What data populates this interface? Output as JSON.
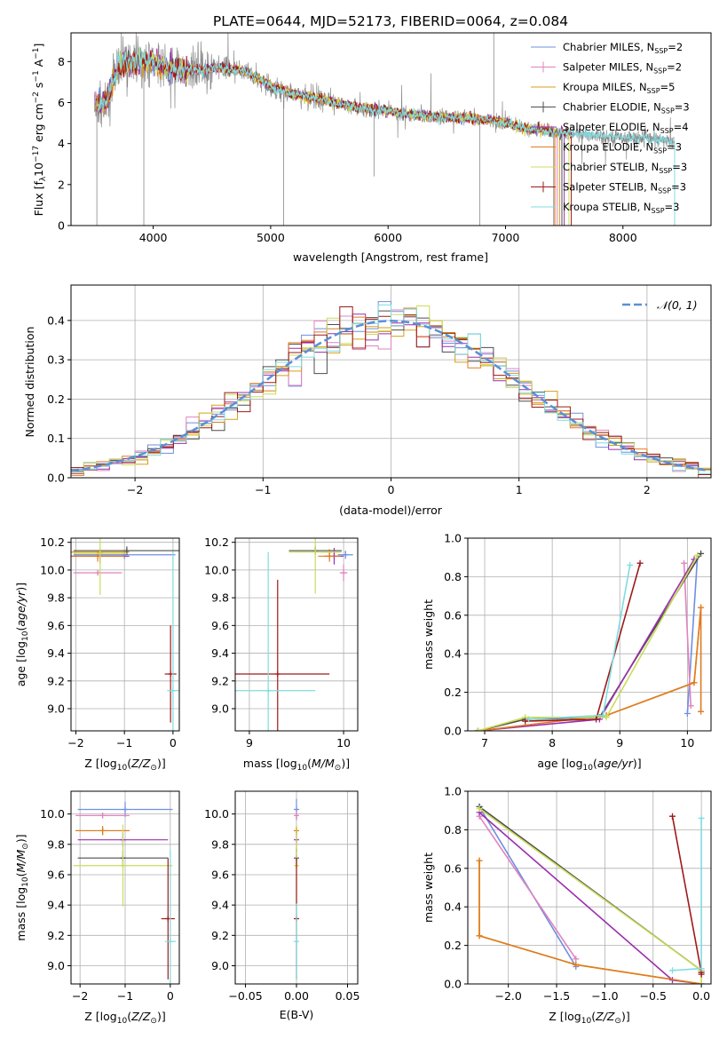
{
  "figure": {
    "suptitle": "PLATE=0644, MJD=52173, FIBERID=0064, z=0.084"
  },
  "colors": {
    "chabrier_miles": "#6f8fe0",
    "salpeter_miles": "#e083c0",
    "kroupa_miles": "#d4a017",
    "chabrier_elodie": "#4d4d4d",
    "salpeter_elodie": "#9b2fae",
    "kroupa_elodie": "#e07b20",
    "chabrier_stelib": "#c9dd5a",
    "salpeter_stelib": "#9e1a1a",
    "kroupa_stelib": "#7fdce0",
    "data": "#888888",
    "normal": "#5b8fd6"
  },
  "legend_entries": [
    {
      "base": "Chabrier MILES, N",
      "sub": "SSP",
      "tail": "=2"
    },
    {
      "base": "Salpeter MILES, N",
      "sub": "SSP",
      "tail": "=2"
    },
    {
      "base": "Kroupa MILES, N",
      "sub": "SSP",
      "tail": "=5"
    },
    {
      "base": "Chabrier ELODIE, N",
      "sub": "SSP",
      "tail": "=3"
    },
    {
      "base": "Salpeter ELODIE, N",
      "sub": "SSP",
      "tail": "=4"
    },
    {
      "base": "Kroupa ELODIE, N",
      "sub": "SSP",
      "tail": "=3"
    },
    {
      "base": "Chabrier STELIB, N",
      "sub": "SSP",
      "tail": "=3"
    },
    {
      "base": "Salpeter STELIB, N",
      "sub": "SSP",
      "tail": "=3"
    },
    {
      "base": "Kroupa STELIB, N",
      "sub": "SSP",
      "tail": "=3"
    }
  ],
  "chart_data": [
    {
      "id": "spectrum",
      "type": "line",
      "xlabel": "wavelength [Angstrom, rest frame]",
      "ylabel": "Flux [fλ10⁻¹⁷ erg cm⁻² s⁻¹ A⁻¹]",
      "xlim": [
        3300,
        8750
      ],
      "ylim": [
        0,
        9.4
      ],
      "xticks": [
        4000,
        5000,
        6000,
        7000,
        8000
      ],
      "yticks": [
        0,
        2,
        4,
        6,
        8
      ],
      "legend": "top-right",
      "continuum": {
        "x": [
          3500,
          3600,
          3700,
          3800,
          3900,
          4000,
          4100,
          4200,
          4400,
          4600,
          4800,
          5000,
          5200,
          5400,
          5600,
          5800,
          6000,
          6200,
          6400,
          6600,
          6800,
          7000,
          7200,
          7400,
          7600,
          7800,
          8000,
          8200,
          8400
        ],
        "y": [
          6.0,
          5.9,
          7.8,
          7.9,
          8.0,
          8.0,
          7.7,
          7.6,
          7.6,
          7.7,
          7.5,
          6.8,
          6.4,
          6.2,
          5.9,
          5.7,
          5.6,
          5.4,
          5.3,
          5.25,
          5.2,
          5.0,
          4.7,
          4.6,
          4.45,
          4.4,
          4.3,
          4.25,
          4.1
        ]
      }
    },
    {
      "id": "residuals",
      "type": "bar",
      "xlabel": "(data-model)/error",
      "ylabel": "Normed distribution",
      "xlim": [
        -2.5,
        2.5
      ],
      "ylim": [
        0,
        0.49
      ],
      "xticks": [
        -2,
        -1,
        0,
        1,
        2
      ],
      "yticks": [
        0.0,
        0.1,
        0.2,
        0.3,
        0.4
      ],
      "grid": true,
      "legend": "top-right",
      "legend_label": "𝒩(0, 1)",
      "bin_width": 0.1
    },
    {
      "id": "age_vs_Z",
      "type": "scatter",
      "xlabel": "Z [log10(Z/Z⊙)]",
      "ylabel": "age  [log10(age/yr)]",
      "xlim": [
        -2.1,
        0.13
      ],
      "ylim": [
        8.84,
        10.23
      ],
      "xticks": [
        -2,
        -1,
        0
      ],
      "yticks": [
        9.0,
        9.2,
        9.4,
        9.6,
        9.8,
        10.0,
        10.2
      ],
      "grid": true,
      "points": [
        {
          "c": "chabrier_miles",
          "x": -1.0,
          "y": 10.11,
          "xerr": 1.05,
          "yerr": 0.03
        },
        {
          "c": "salpeter_miles",
          "x": -1.55,
          "y": 9.98,
          "xerr": 0.5,
          "yerr": 0.02
        },
        {
          "c": "kroupa_miles",
          "x": -1.5,
          "y": 10.13,
          "xerr": 0.6,
          "yerr": 0.02
        },
        {
          "c": "chabrier_elodie",
          "x": -0.95,
          "y": 10.14,
          "xerr": 1.1,
          "yerr": 0.03
        },
        {
          "c": "salpeter_elodie",
          "x": -1.5,
          "y": 10.1,
          "xerr": 0.6,
          "yerr": 0.05
        },
        {
          "c": "kroupa_elodie",
          "x": -1.55,
          "y": 10.1,
          "xerr": 0.55,
          "yerr": 0.04
        },
        {
          "c": "chabrier_stelib",
          "x": -1.5,
          "y": 10.12,
          "xerr": 0.55,
          "yerr": 0.3
        },
        {
          "c": "salpeter_stelib",
          "x": -0.05,
          "y": 9.25,
          "xerr": 0.12,
          "yerr": 0.35
        },
        {
          "c": "kroupa_stelib",
          "x": 0.0,
          "y": 9.13,
          "xerr": 0.12,
          "yerr": 1.0
        }
      ]
    },
    {
      "id": "age_vs_mass",
      "type": "scatter",
      "xlabel": "mass [log10(M/M⊙)]",
      "ylabel": "",
      "xlim": [
        8.85,
        10.15
      ],
      "ylim": [
        8.84,
        10.23
      ],
      "xticks": [
        9,
        10
      ],
      "yticks": [
        9.0,
        9.2,
        9.4,
        9.6,
        9.8,
        10.0,
        10.2
      ],
      "grid": true,
      "points": [
        {
          "c": "chabrier_miles",
          "x": 10.02,
          "y": 10.11,
          "xerr": 0.08,
          "yerr": 0.03
        },
        {
          "c": "salpeter_miles",
          "x": 10.0,
          "y": 9.98,
          "xerr": 0.04,
          "yerr": 0.06
        },
        {
          "c": "kroupa_miles",
          "x": 9.85,
          "y": 10.13,
          "xerr": 0.1,
          "yerr": 0.02
        },
        {
          "c": "chabrier_elodie",
          "x": 9.7,
          "y": 10.14,
          "xerr": 0.28,
          "yerr": 0.03
        },
        {
          "c": "salpeter_elodie",
          "x": 9.9,
          "y": 10.1,
          "xerr": 0.1,
          "yerr": 0.06
        },
        {
          "c": "kroupa_elodie",
          "x": 9.85,
          "y": 10.1,
          "xerr": 0.12,
          "yerr": 0.04
        },
        {
          "c": "chabrier_stelib",
          "x": 9.7,
          "y": 10.13,
          "xerr": 0.28,
          "yerr": 0.3
        },
        {
          "c": "salpeter_stelib",
          "x": 9.3,
          "y": 9.25,
          "xerr": 0.55,
          "yerr": 0.68
        },
        {
          "c": "kroupa_stelib",
          "x": 9.2,
          "y": 9.13,
          "xerr": 0.5,
          "yerr": 1.0
        }
      ]
    },
    {
      "id": "weight_vs_age",
      "type": "line",
      "xlabel": "age  [log10(age/yr)]",
      "ylabel": "mass weight",
      "xlim": [
        6.75,
        10.35
      ],
      "ylim": [
        0,
        1.0
      ],
      "xticks": [
        7,
        8,
        9,
        10
      ],
      "yticks": [
        0.0,
        0.2,
        0.4,
        0.6,
        0.8,
        1.0
      ],
      "grid": true,
      "series": [
        {
          "c": "chabrier_miles",
          "x": [
            10.0,
            10.15
          ],
          "y": [
            0.09,
            0.91
          ]
        },
        {
          "c": "salpeter_miles",
          "x": [
            9.95,
            10.05
          ],
          "y": [
            0.87,
            0.13
          ]
        },
        {
          "c": "kroupa_miles",
          "x": [
            6.9,
            7.6,
            8.8,
            10.1,
            10.2
          ],
          "y": [
            0.0,
            0.06,
            0.08,
            0.25,
            0.64
          ]
        },
        {
          "c": "chabrier_elodie",
          "x": [
            6.9,
            7.6,
            8.7,
            10.2
          ],
          "y": [
            0.0,
            0.06,
            0.07,
            0.92
          ]
        },
        {
          "c": "salpeter_elodie",
          "x": [
            6.9,
            8.7,
            10.1
          ],
          "y": [
            0.0,
            0.06,
            0.89
          ]
        },
        {
          "c": "kroupa_elodie",
          "x": [
            6.9,
            8.8,
            10.1,
            10.2,
            10.2
          ],
          "y": [
            0.0,
            0.08,
            0.25,
            0.64,
            0.1
          ]
        },
        {
          "c": "chabrier_stelib",
          "x": [
            6.9,
            7.6,
            8.8,
            10.15
          ],
          "y": [
            0.0,
            0.07,
            0.07,
            0.91
          ]
        },
        {
          "c": "salpeter_stelib",
          "x": [
            7.6,
            8.65,
            9.3
          ],
          "y": [
            0.05,
            0.06,
            0.87
          ]
        },
        {
          "c": "kroupa_stelib",
          "x": [
            7.65,
            8.75,
            9.15
          ],
          "y": [
            0.06,
            0.08,
            0.86
          ]
        }
      ]
    },
    {
      "id": "mass_vs_Z",
      "type": "scatter",
      "xlabel": "Z [log10(Z/Z⊙)]",
      "ylabel": "mass [log10(M/M⊙)]",
      "xlim": [
        -2.2,
        0.2
      ],
      "ylim": [
        8.88,
        10.15
      ],
      "xticks": [
        -2,
        -1,
        0
      ],
      "yticks": [
        9.0,
        9.2,
        9.4,
        9.6,
        9.8,
        10.0
      ],
      "grid": true,
      "points": [
        {
          "c": "chabrier_miles",
          "x": -1.0,
          "y": 10.03,
          "xerr": 1.05,
          "yerr": 0.05
        },
        {
          "c": "salpeter_miles",
          "x": -1.5,
          "y": 9.99,
          "xerr": 0.6,
          "yerr": 0.02
        },
        {
          "c": "kroupa_miles",
          "x": -1.5,
          "y": 9.89,
          "xerr": 0.6,
          "yerr": 0.03
        },
        {
          "c": "chabrier_elodie",
          "x": -1.05,
          "y": 9.71,
          "xerr": 1.0,
          "yerr": 0.05
        },
        {
          "c": "salpeter_elodie",
          "x": -1.05,
          "y": 9.83,
          "xerr": 1.0,
          "yerr": 0.05
        },
        {
          "c": "kroupa_elodie",
          "x": -1.5,
          "y": 9.89,
          "xerr": 0.6,
          "yerr": 0.03
        },
        {
          "c": "chabrier_stelib",
          "x": -1.05,
          "y": 9.66,
          "xerr": 1.1,
          "yerr": 0.27
        },
        {
          "c": "salpeter_stelib",
          "x": -0.05,
          "y": 9.31,
          "xerr": 0.15,
          "yerr": 0.4
        },
        {
          "c": "kroupa_stelib",
          "x": 0.0,
          "y": 9.16,
          "xerr": 0.12,
          "yerr": 0.6
        }
      ]
    },
    {
      "id": "mass_vs_EBV",
      "type": "scatter",
      "xlabel": "E(B-V)",
      "ylabel": "",
      "xlim": [
        -0.06,
        0.06
      ],
      "ylim": [
        8.88,
        10.15
      ],
      "xticks": [
        -0.05,
        0.0,
        0.05
      ],
      "yticks": [
        9.0,
        9.2,
        9.4,
        9.6,
        9.8,
        10.0
      ],
      "grid": true,
      "points": [
        {
          "c": "chabrier_miles",
          "x": 0.0,
          "y": 10.03,
          "xerr": 0.0,
          "yerr": 0.07
        },
        {
          "c": "salpeter_miles",
          "x": 0.0,
          "y": 9.99,
          "xerr": 0.0,
          "yerr": 0.03
        },
        {
          "c": "kroupa_miles",
          "x": 0.0,
          "y": 9.89,
          "xerr": 0.0,
          "yerr": 0.03
        },
        {
          "c": "chabrier_elodie",
          "x": 0.0,
          "y": 9.71,
          "xerr": 0.0,
          "yerr": 0.06
        },
        {
          "c": "salpeter_elodie",
          "x": 0.0,
          "y": 9.83,
          "xerr": 0.0,
          "yerr": 0.08
        },
        {
          "c": "kroupa_elodie",
          "x": 0.0,
          "y": 9.89,
          "xerr": 0.0,
          "yerr": 0.03
        },
        {
          "c": "chabrier_stelib",
          "x": 0.0,
          "y": 9.66,
          "xerr": 0.0,
          "yerr": 0.27
        },
        {
          "c": "salpeter_stelib",
          "x": 0.0,
          "y": 9.31,
          "xerr": 0.0,
          "yerr": 0.4
        },
        {
          "c": "kroupa_stelib",
          "x": 0.0,
          "y": 9.16,
          "xerr": 0.0,
          "yerr": 0.25
        }
      ]
    },
    {
      "id": "weight_vs_Z",
      "type": "line",
      "xlabel": "Z [log10(Z/Z⊙)]",
      "ylabel": "mass weight",
      "xlim": [
        -2.42,
        0.1
      ],
      "ylim": [
        0,
        1.0
      ],
      "xticks": [
        -2.0,
        -1.5,
        -1.0,
        -0.5,
        0.0
      ],
      "yticks": [
        0.0,
        0.2,
        0.4,
        0.6,
        0.8,
        1.0
      ],
      "grid": true,
      "series": [
        {
          "c": "chabrier_miles",
          "x": [
            -2.3,
            -1.3
          ],
          "y": [
            0.92,
            0.09
          ]
        },
        {
          "c": "salpeter_miles",
          "x": [
            -2.3,
            -1.3
          ],
          "y": [
            0.87,
            0.13
          ]
        },
        {
          "c": "kroupa_miles",
          "x": [
            -2.3,
            -2.3,
            -1.3,
            0.0
          ],
          "y": [
            0.64,
            0.25,
            0.1,
            0.0
          ]
        },
        {
          "c": "chabrier_elodie",
          "x": [
            -2.3,
            0.0,
            0.0
          ],
          "y": [
            0.92,
            0.07,
            0.06
          ]
        },
        {
          "c": "salpeter_elodie",
          "x": [
            -2.3,
            -0.3,
            0.0
          ],
          "y": [
            0.89,
            0.02,
            0.0
          ]
        },
        {
          "c": "kroupa_elodie",
          "x": [
            -2.3,
            -2.3,
            -1.3,
            0.0
          ],
          "y": [
            0.64,
            0.25,
            0.1,
            0.0
          ]
        },
        {
          "c": "chabrier_stelib",
          "x": [
            -2.3,
            0.0,
            0.0
          ],
          "y": [
            0.91,
            0.07,
            0.0
          ]
        },
        {
          "c": "salpeter_stelib",
          "x": [
            -0.3,
            0.0,
            0.0
          ],
          "y": [
            0.87,
            0.06,
            0.05
          ]
        },
        {
          "c": "kroupa_stelib",
          "x": [
            0.0,
            0.0,
            -0.3
          ],
          "y": [
            0.86,
            0.08,
            0.07
          ]
        }
      ]
    }
  ]
}
